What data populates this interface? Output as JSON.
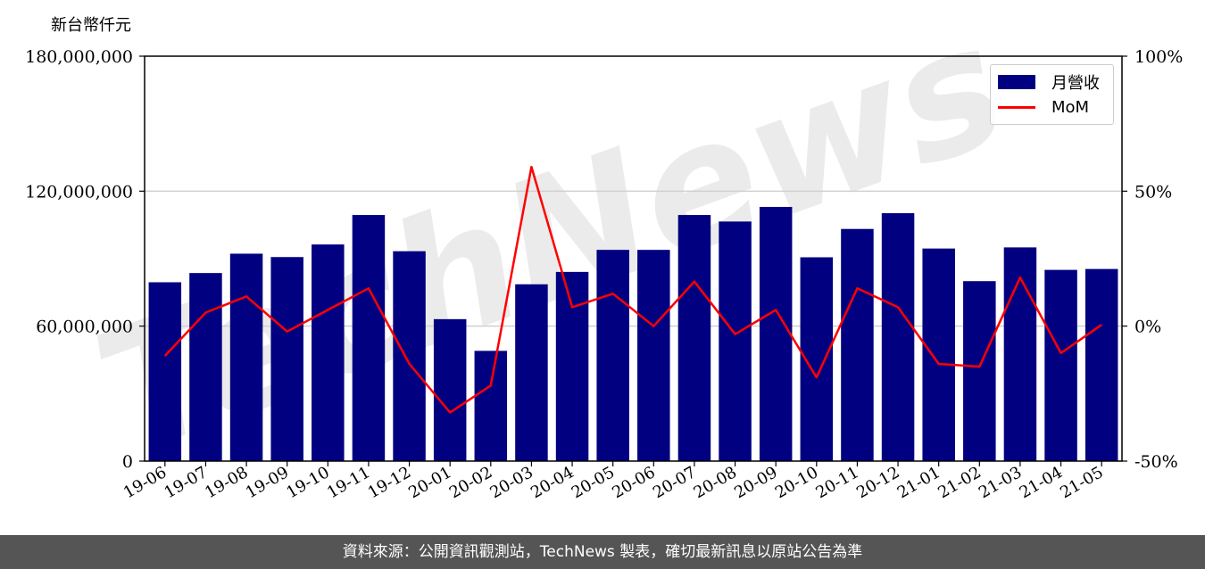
{
  "chart_data": {
    "type": "bar",
    "ylabel": "新台幣仟元",
    "categories": [
      "19-06",
      "19-07",
      "19-08",
      "19-09",
      "19-10",
      "19-11",
      "19-12",
      "20-01",
      "20-02",
      "20-03",
      "20-04",
      "20-05",
      "20-06",
      "20-07",
      "20-08",
      "20-09",
      "20-10",
      "20-11",
      "20-12",
      "21-01",
      "21-02",
      "21-03",
      "21-04",
      "21-05"
    ],
    "series": [
      {
        "name": "月營收",
        "type": "bar",
        "axis": "left",
        "color": "#000080",
        "values": [
          79500000,
          83600000,
          92200000,
          90700000,
          96300000,
          109400000,
          93300000,
          63100000,
          49000000,
          78600000,
          84100000,
          93900000,
          93900000,
          109400000,
          106500000,
          113000000,
          90600000,
          103200000,
          110200000,
          94500000,
          80000000,
          95000000,
          85000000,
          85400000
        ]
      },
      {
        "name": "MoM",
        "type": "line",
        "axis": "right",
        "color": "#ff0000",
        "values": [
          -11,
          5,
          11,
          -2,
          6,
          14,
          -14,
          -32,
          -22,
          59,
          7,
          12,
          0,
          16.5,
          -3,
          6,
          -19,
          14,
          7,
          -14,
          -15,
          18,
          -10,
          0.5
        ]
      }
    ],
    "y_left": {
      "min": 0,
      "max": 180000000,
      "ticks": [
        "0",
        "60,000,000",
        "120,000,000",
        "180,000,000"
      ],
      "tick_values": [
        0,
        60000000,
        120000000,
        180000000
      ]
    },
    "y_right": {
      "min": -50,
      "max": 100,
      "ticks": [
        "-50%",
        "0%",
        "50%",
        "100%"
      ],
      "tick_values": [
        -50,
        0,
        50,
        100
      ]
    },
    "grid": "horizontal",
    "legend_position": "top-right",
    "watermark": "TechNews"
  },
  "footer": {
    "text": "資料來源：公開資訊觀測站，TechNews 製表，確切最新訊息以原站公告為準"
  }
}
